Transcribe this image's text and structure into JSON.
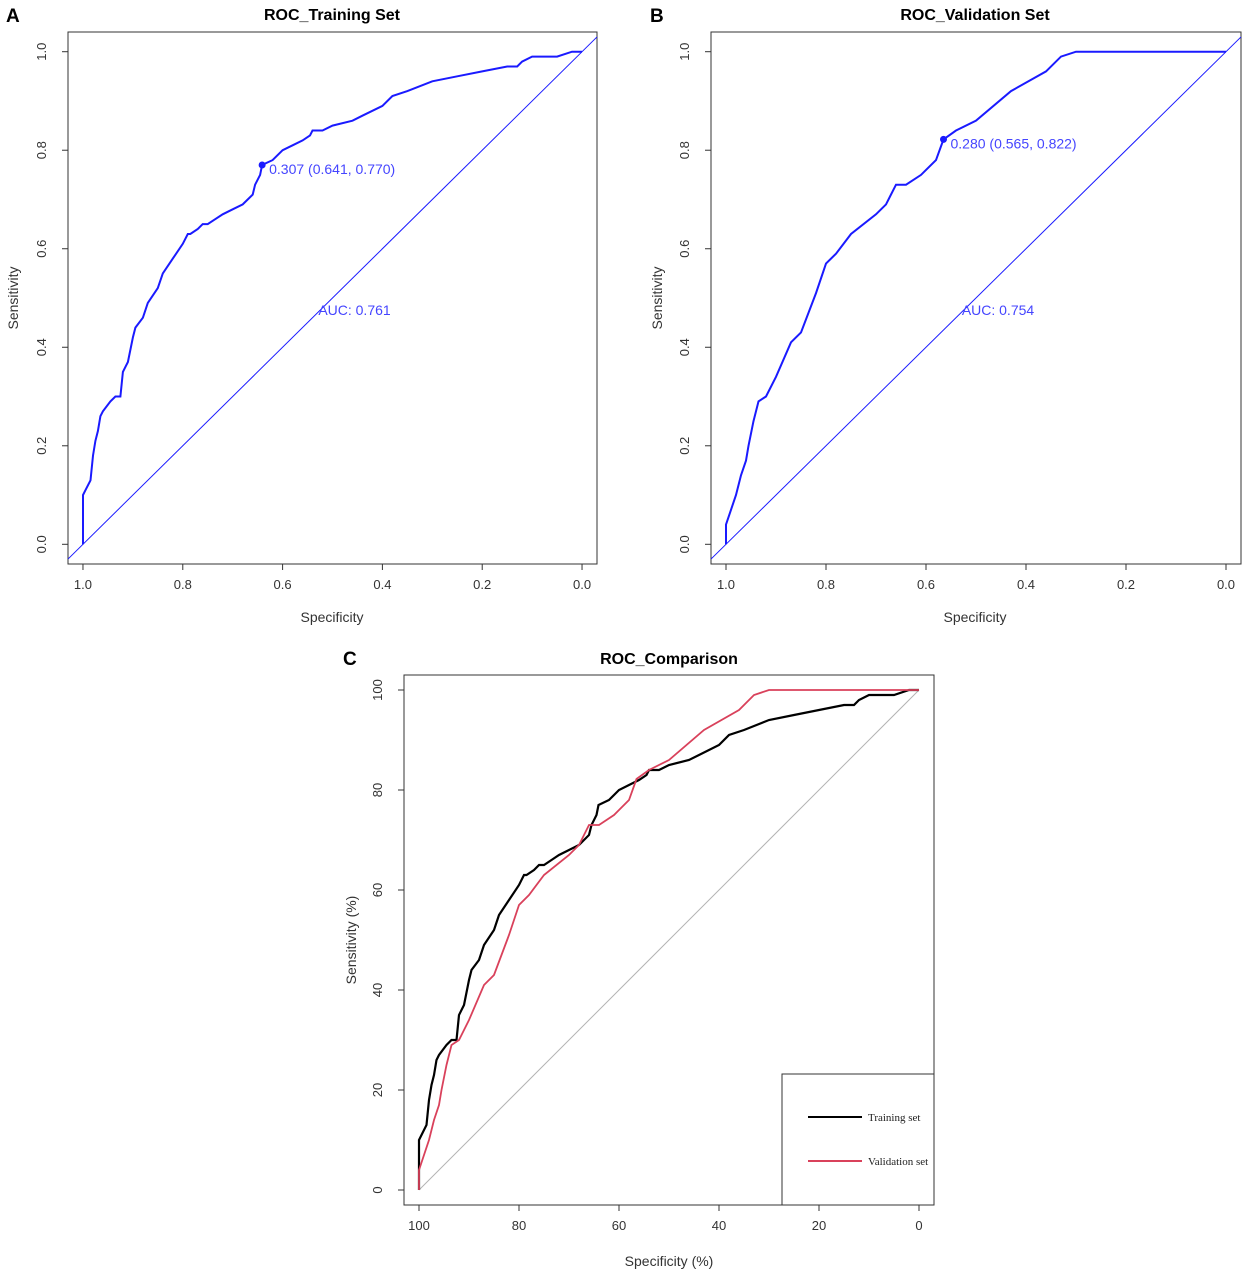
{
  "colors": {
    "blue": "#1a1aff",
    "annot_blue": "#4545ff",
    "black": "#000000",
    "red": "#d9415b",
    "grey_diag": "#b3b3b3"
  },
  "chart_data": [
    {
      "id": "A",
      "letter": "A",
      "type": "line",
      "title": "ROC_Training Set",
      "xlabel": "Specificity",
      "ylabel": "Sensitivity",
      "xlim": [
        1.03,
        -0.03
      ],
      "ylim": [
        -0.04,
        1.04
      ],
      "xticks": [
        1.0,
        0.8,
        0.6,
        0.4,
        0.2,
        0.0
      ],
      "xtick_labels": [
        "1.0",
        "0.8",
        "0.6",
        "0.4",
        "0.2",
        "0.0"
      ],
      "yticks": [
        0.0,
        0.2,
        0.4,
        0.6,
        0.8,
        1.0
      ],
      "ytick_labels": [
        "0.0",
        "0.2",
        "0.4",
        "0.6",
        "0.8",
        "1.0"
      ],
      "auc_label": "AUC: 0.761",
      "auc_anchor": [
        0.5,
        0.49
      ],
      "threshold": {
        "label": "0.307 (0.641, 0.770)",
        "specificity": 0.641,
        "sensitivity": 0.77
      },
      "curve": {
        "specificity": [
          1.0,
          1.0,
          0.995,
          0.985,
          0.98,
          0.975,
          0.97,
          0.965,
          0.96,
          0.945,
          0.935,
          0.925,
          0.92,
          0.91,
          0.9,
          0.895,
          0.88,
          0.87,
          0.85,
          0.84,
          0.82,
          0.8,
          0.79,
          0.785,
          0.77,
          0.76,
          0.75,
          0.735,
          0.72,
          0.7,
          0.68,
          0.66,
          0.655,
          0.645,
          0.641,
          0.62,
          0.6,
          0.58,
          0.56,
          0.545,
          0.54,
          0.52,
          0.5,
          0.46,
          0.44,
          0.4,
          0.38,
          0.35,
          0.3,
          0.25,
          0.2,
          0.15,
          0.13,
          0.12,
          0.1,
          0.05,
          0.02,
          0.0
        ],
        "sensitivity": [
          0.0,
          0.1,
          0.11,
          0.13,
          0.18,
          0.21,
          0.23,
          0.26,
          0.27,
          0.29,
          0.3,
          0.3,
          0.35,
          0.37,
          0.42,
          0.44,
          0.46,
          0.49,
          0.52,
          0.55,
          0.58,
          0.61,
          0.63,
          0.63,
          0.64,
          0.65,
          0.65,
          0.66,
          0.67,
          0.68,
          0.69,
          0.71,
          0.73,
          0.75,
          0.77,
          0.78,
          0.8,
          0.81,
          0.82,
          0.83,
          0.84,
          0.84,
          0.85,
          0.86,
          0.87,
          0.89,
          0.91,
          0.92,
          0.94,
          0.95,
          0.96,
          0.97,
          0.97,
          0.98,
          0.99,
          0.99,
          1.0,
          1.0
        ]
      }
    },
    {
      "id": "B",
      "letter": "B",
      "type": "line",
      "title": "ROC_Validation Set",
      "xlabel": "Specificity",
      "ylabel": "Sensitivity",
      "xlim": [
        1.03,
        -0.03
      ],
      "ylim": [
        -0.04,
        1.04
      ],
      "xticks": [
        1.0,
        0.8,
        0.6,
        0.4,
        0.2,
        0.0
      ],
      "xtick_labels": [
        "1.0",
        "0.8",
        "0.6",
        "0.4",
        "0.2",
        "0.0"
      ],
      "yticks": [
        0.0,
        0.2,
        0.4,
        0.6,
        0.8,
        1.0
      ],
      "ytick_labels": [
        "0.0",
        "0.2",
        "0.4",
        "0.6",
        "0.8",
        "1.0"
      ],
      "auc_label": "AUC: 0.754",
      "auc_anchor": [
        0.5,
        0.49
      ],
      "threshold": {
        "label": "0.280 (0.565, 0.822)",
        "specificity": 0.565,
        "sensitivity": 0.822
      },
      "curve": {
        "specificity": [
          1.0,
          1.0,
          0.99,
          0.98,
          0.97,
          0.96,
          0.955,
          0.945,
          0.935,
          0.92,
          0.9,
          0.87,
          0.85,
          0.82,
          0.8,
          0.78,
          0.75,
          0.7,
          0.68,
          0.66,
          0.64,
          0.61,
          0.6,
          0.58,
          0.565,
          0.54,
          0.5,
          0.43,
          0.36,
          0.33,
          0.3,
          0.0
        ],
        "sensitivity": [
          0.0,
          0.04,
          0.07,
          0.1,
          0.14,
          0.17,
          0.2,
          0.25,
          0.29,
          0.3,
          0.34,
          0.41,
          0.43,
          0.51,
          0.57,
          0.59,
          0.63,
          0.67,
          0.69,
          0.73,
          0.73,
          0.75,
          0.76,
          0.78,
          0.822,
          0.84,
          0.86,
          0.92,
          0.96,
          0.99,
          1.0,
          1.0
        ]
      }
    },
    {
      "id": "C",
      "letter": "C",
      "type": "line",
      "title": "ROC_Comparison",
      "xlabel": "Specificity (%)",
      "ylabel": "Sensitivity (%)",
      "xlim": [
        103,
        -3
      ],
      "ylim": [
        -3,
        103
      ],
      "xticks": [
        100,
        80,
        60,
        40,
        20,
        0
      ],
      "xtick_labels": [
        "100",
        "80",
        "60",
        "40",
        "20",
        "0"
      ],
      "yticks": [
        0,
        20,
        40,
        60,
        80,
        100
      ],
      "ytick_labels": [
        "0",
        "20",
        "40",
        "60",
        "80",
        "100"
      ],
      "legend": {
        "position": "bottom-right",
        "entries": [
          {
            "name": "Training set",
            "color": "#000000"
          },
          {
            "name": "Validation set",
            "color": "#d9415b"
          }
        ]
      },
      "series": [
        {
          "name": "Training set",
          "source": "A",
          "scale": 100
        },
        {
          "name": "Validation set",
          "source": "B",
          "scale": 100
        }
      ]
    }
  ]
}
